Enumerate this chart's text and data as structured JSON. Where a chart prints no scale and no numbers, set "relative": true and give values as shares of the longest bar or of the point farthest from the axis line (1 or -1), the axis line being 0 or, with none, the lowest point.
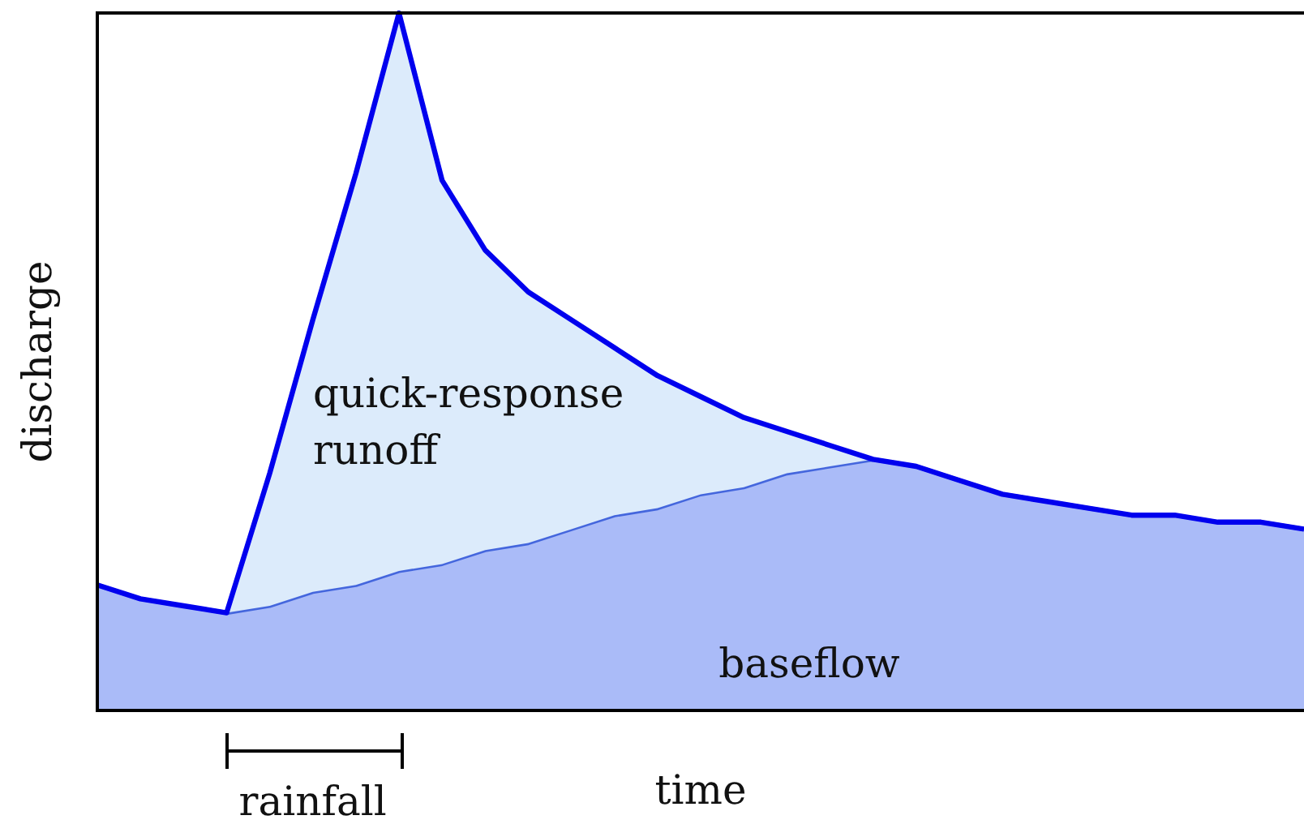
{
  "chart_data": {
    "type": "area",
    "relative": true,
    "xlabel": "time",
    "ylabel": "discharge",
    "annotations": [
      "rainfall"
    ],
    "categories": [
      null,
      null,
      null,
      null,
      null,
      null,
      null,
      null,
      null,
      null,
      null,
      null,
      null,
      null,
      null,
      null,
      null,
      null,
      null,
      null,
      null,
      null,
      null,
      null,
      null,
      null,
      null,
      null,
      null
    ],
    "series": [
      {
        "name": "quick-response runoff",
        "color": "#0000ee",
        "values": [
          0.18,
          0.16,
          0.15,
          0.14,
          0.34,
          0.56,
          0.77,
          1,
          0.76,
          0.66,
          0.6,
          0.56,
          0.52,
          0.48,
          0.45,
          0.42,
          0.4,
          0.38,
          0.36,
          0.35,
          0.33,
          0.31,
          0.3,
          0.29,
          0.28,
          0.28,
          0.27,
          0.27,
          0.26
        ]
      },
      {
        "name": "baseflow",
        "color": "#4466dd",
        "values": [
          0.18,
          0.16,
          0.15,
          0.14,
          0.15,
          0.17,
          0.18,
          0.2,
          0.21,
          0.23,
          0.24,
          0.26,
          0.28,
          0.29,
          0.31,
          0.32,
          0.34,
          0.35,
          0.36,
          0.35,
          0.33,
          0.31,
          0.3,
          0.29,
          0.28,
          0.28,
          0.27,
          0.27,
          0.26
        ]
      }
    ],
    "grid": false,
    "legend": false
  }
}
